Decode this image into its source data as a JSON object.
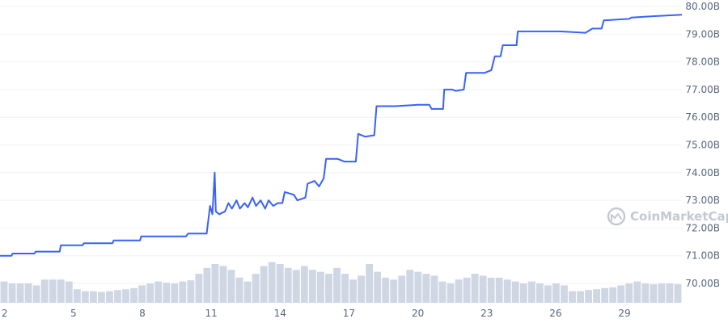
{
  "chart_data": {
    "type": "line",
    "watermark": "CoinMarketCap",
    "x_ticks": [
      "2",
      "5",
      "8",
      "11",
      "14",
      "17",
      "20",
      "23",
      "26",
      "29"
    ],
    "y_ticks": [
      "70.00B",
      "71.00B",
      "72.00B",
      "73.00B",
      "74.00B",
      "75.00B",
      "76.00B",
      "77.00B",
      "78.00B",
      "79.00B",
      "80.00B"
    ],
    "xlim": [
      1.8,
      31.5
    ],
    "ylim": [
      69.4,
      80.1
    ],
    "grid": true,
    "colors": {
      "line": "#3861fb",
      "volume": "#cfd6e4",
      "grid": "#eff2f5",
      "text": "#58667e"
    },
    "series": [
      {
        "values": [
          [
            1.8,
            71.0
          ],
          [
            2.3,
            71.0
          ],
          [
            2.35,
            71.08
          ],
          [
            3.3,
            71.08
          ],
          [
            3.35,
            71.15
          ],
          [
            4.4,
            71.15
          ],
          [
            4.45,
            71.38
          ],
          [
            5.4,
            71.38
          ],
          [
            5.45,
            71.45
          ],
          [
            6.7,
            71.45
          ],
          [
            6.75,
            71.55
          ],
          [
            7.9,
            71.55
          ],
          [
            7.95,
            71.7
          ],
          [
            9.9,
            71.7
          ],
          [
            10.0,
            71.8
          ],
          [
            10.8,
            71.8
          ],
          [
            10.95,
            72.8
          ],
          [
            11.05,
            72.5
          ],
          [
            11.15,
            74.0
          ],
          [
            11.2,
            72.6
          ],
          [
            11.35,
            72.5
          ],
          [
            11.6,
            72.6
          ],
          [
            11.75,
            72.9
          ],
          [
            11.9,
            72.7
          ],
          [
            12.1,
            73.0
          ],
          [
            12.25,
            72.7
          ],
          [
            12.45,
            72.9
          ],
          [
            12.6,
            72.75
          ],
          [
            12.8,
            73.1
          ],
          [
            12.95,
            72.8
          ],
          [
            13.15,
            73.0
          ],
          [
            13.35,
            72.7
          ],
          [
            13.5,
            73.0
          ],
          [
            13.7,
            72.8
          ],
          [
            13.9,
            72.9
          ],
          [
            14.1,
            72.9
          ],
          [
            14.2,
            73.3
          ],
          [
            14.6,
            73.2
          ],
          [
            14.75,
            73.0
          ],
          [
            15.1,
            73.1
          ],
          [
            15.2,
            73.6
          ],
          [
            15.5,
            73.7
          ],
          [
            15.7,
            73.5
          ],
          [
            15.9,
            73.8
          ],
          [
            16.0,
            74.5
          ],
          [
            16.5,
            74.5
          ],
          [
            16.8,
            74.4
          ],
          [
            17.3,
            74.4
          ],
          [
            17.4,
            75.4
          ],
          [
            17.7,
            75.3
          ],
          [
            18.1,
            75.35
          ],
          [
            18.2,
            76.4
          ],
          [
            19.0,
            76.4
          ],
          [
            20.0,
            76.45
          ],
          [
            20.5,
            76.45
          ],
          [
            20.6,
            76.3
          ],
          [
            21.1,
            76.3
          ],
          [
            21.15,
            77.0
          ],
          [
            21.5,
            77.0
          ],
          [
            21.65,
            76.95
          ],
          [
            22.0,
            77.0
          ],
          [
            22.1,
            77.6
          ],
          [
            22.5,
            77.6
          ],
          [
            22.9,
            77.6
          ],
          [
            23.2,
            77.7
          ],
          [
            23.35,
            78.2
          ],
          [
            23.6,
            78.2
          ],
          [
            23.7,
            78.6
          ],
          [
            24.0,
            78.6
          ],
          [
            24.3,
            78.6
          ],
          [
            24.35,
            79.1
          ],
          [
            25.0,
            79.1
          ],
          [
            26.2,
            79.1
          ],
          [
            27.3,
            79.05
          ],
          [
            27.6,
            79.2
          ],
          [
            28.0,
            79.2
          ],
          [
            28.1,
            79.5
          ],
          [
            29.2,
            79.55
          ],
          [
            29.3,
            79.6
          ],
          [
            30.3,
            79.65
          ],
          [
            31.5,
            79.7
          ]
        ]
      }
    ],
    "volume": [
      0.55,
      0.5,
      0.5,
      0.5,
      0.45,
      0.6,
      0.6,
      0.6,
      0.55,
      0.35,
      0.3,
      0.3,
      0.28,
      0.3,
      0.33,
      0.35,
      0.38,
      0.45,
      0.5,
      0.55,
      0.52,
      0.5,
      0.55,
      0.58,
      0.75,
      0.9,
      1.0,
      0.95,
      0.85,
      0.65,
      0.55,
      0.75,
      0.95,
      1.05,
      1.0,
      0.9,
      0.85,
      0.95,
      0.85,
      0.8,
      0.75,
      0.9,
      0.75,
      0.6,
      0.7,
      1.0,
      0.8,
      0.65,
      0.6,
      0.7,
      0.85,
      0.8,
      0.75,
      0.7,
      0.55,
      0.5,
      0.6,
      0.65,
      0.75,
      0.7,
      0.65,
      0.65,
      0.6,
      0.55,
      0.5,
      0.55,
      0.5,
      0.45,
      0.5,
      0.45,
      0.3,
      0.3,
      0.33,
      0.35,
      0.38,
      0.4,
      0.45,
      0.5,
      0.55,
      0.5,
      0.48,
      0.5,
      0.5,
      0.48
    ]
  }
}
